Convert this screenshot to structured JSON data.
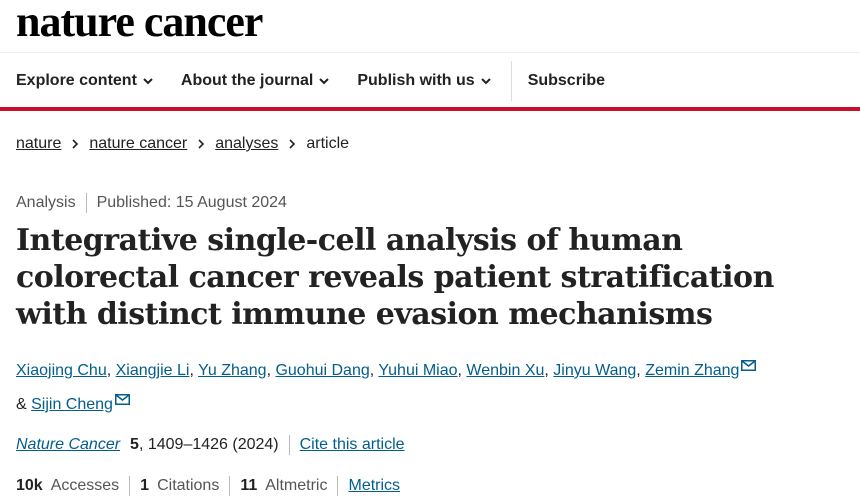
{
  "brand": {
    "logo": "nature cancer"
  },
  "nav": {
    "items": [
      {
        "label": "Explore content",
        "has_dropdown": true
      },
      {
        "label": "About the journal",
        "has_dropdown": true
      },
      {
        "label": "Publish with us",
        "has_dropdown": true
      }
    ],
    "subscribe": "Subscribe"
  },
  "breadcrumb": [
    "nature",
    "nature cancer",
    "analyses",
    "article"
  ],
  "meta": {
    "type": "Analysis",
    "published": "Published: 15 August 2024"
  },
  "title": "Integrative single-cell analysis of human colorectal cancer reveals patient stratification with distinct immune evasion mechanisms",
  "authors": {
    "line1": [
      "Xiaojing Chu",
      "Xiangjie Li",
      "Yu Zhang",
      "Guohui Dang",
      "Yuhui Miao",
      "Wenbin Xu",
      "Jinyu Wang",
      "Zemin Zhang"
    ],
    "amp": "&",
    "last": "Sijin Cheng"
  },
  "citation": {
    "journal": "Nature Cancer",
    "volume": "5",
    "pages_year": ", 1409–1426 (2024)",
    "cite_link": "Cite this article"
  },
  "metrics": {
    "accesses_value": "10k",
    "accesses_label": "Accesses",
    "citations_value": "1",
    "citations_label": "Citations",
    "altmetric_value": "11",
    "altmetric_label": "Altmetric",
    "metrics_link": "Metrics"
  },
  "colors": {
    "brand_red": "#c8102e",
    "link": "#025e8d"
  }
}
